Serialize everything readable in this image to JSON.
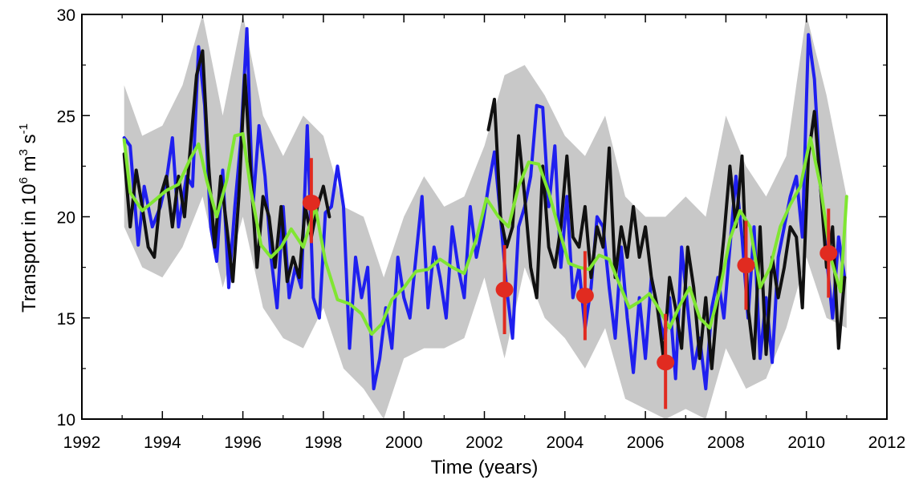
{
  "chart_data": {
    "type": "line",
    "title": "",
    "xlabel": "Time (years)",
    "ylabel": {
      "prefix": "Transport in 10",
      "exp1": "6",
      "mid": " m",
      "exp2": "3",
      "mid2": " s",
      "exp3": "-1"
    },
    "xlim": [
      1992,
      2012
    ],
    "ylim": [
      10,
      30
    ],
    "xticks": [
      "1992",
      "1994",
      "1996",
      "1998",
      "2000",
      "2002",
      "2004",
      "2006",
      "2008",
      "2010",
      "2012"
    ],
    "yticks": [
      "10",
      "15",
      "20",
      "25",
      "30"
    ],
    "grid": false,
    "legend": "none",
    "colors": {
      "uncertainty": "#c8c8c8",
      "blue_series": "#1f1fef",
      "black_series": "#111111",
      "green_series": "#80e632",
      "points": "#e12b20"
    },
    "series": [
      {
        "id": "blue",
        "x": [
          1993.05,
          1993.2,
          1993.4,
          1993.55,
          1993.75,
          1993.95,
          1994.1,
          1994.25,
          1994.4,
          1994.6,
          1994.75,
          1994.9,
          1995.05,
          1995.2,
          1995.35,
          1995.5,
          1995.65,
          1995.8,
          1995.95,
          1996.1,
          1996.25,
          1996.4,
          1996.55,
          1996.7,
          1996.85,
          1997.0,
          1997.15,
          1997.3,
          1997.45,
          1997.6,
          1997.75,
          1997.9,
          1998.05,
          1998.2,
          1998.35,
          1998.5,
          1998.65,
          1998.8,
          1998.95,
          1999.1,
          1999.25,
          1999.4,
          1999.55,
          1999.7,
          1999.85,
          2000.0,
          2000.15,
          2000.3,
          2000.45,
          2000.6,
          2000.75,
          2000.9,
          2001.05,
          2001.2,
          2001.35,
          2001.5,
          2001.65,
          2001.8,
          2001.95,
          2002.1,
          2002.25,
          2002.4,
          2002.55,
          2002.7,
          2002.85,
          2003.0,
          2003.15,
          2003.3,
          2003.45,
          2003.6,
          2003.75,
          2003.9,
          2004.05,
          2004.2,
          2004.35,
          2004.5,
          2004.65,
          2004.8,
          2004.95,
          2005.1,
          2005.25,
          2005.4,
          2005.55,
          2005.7,
          2005.85,
          2006.0,
          2006.15,
          2006.3,
          2006.45,
          2006.6,
          2006.75,
          2006.9,
          2007.05,
          2007.2,
          2007.35,
          2007.5,
          2007.65,
          2007.8,
          2007.95,
          2008.1,
          2008.25,
          2008.4,
          2008.55,
          2008.7,
          2008.85,
          2009.0,
          2009.15,
          2009.3,
          2009.45,
          2009.6,
          2009.75,
          2009.9,
          2010.05,
          2010.2,
          2010.35,
          2010.5,
          2010.65,
          2010.8,
          2010.95
        ],
        "y": [
          23.9,
          23.5,
          18.6,
          21.5,
          19.5,
          20.5,
          21.8,
          23.9,
          19.5,
          22.0,
          21.5,
          28.4,
          25.5,
          19.5,
          17.8,
          22.3,
          16.5,
          20.5,
          23.8,
          29.3,
          20.5,
          24.5,
          22.0,
          18.0,
          15.5,
          20.5,
          16.0,
          17.5,
          16.5,
          24.5,
          16.0,
          15.0,
          20.2,
          20.5,
          22.5,
          20.5,
          13.5,
          18.0,
          16.0,
          17.5,
          11.5,
          13.0,
          15.5,
          13.5,
          18.0,
          16.0,
          15.0,
          18.0,
          21.0,
          15.5,
          18.5,
          17.0,
          15.0,
          19.5,
          17.5,
          16.0,
          20.5,
          18.0,
          19.5,
          21.5,
          23.2,
          20.0,
          16.5,
          14.0,
          19.5,
          20.5,
          22.0,
          25.5,
          25.4,
          20.5,
          23.5,
          17.5,
          21.0,
          16.0,
          17.5,
          14.5,
          16.5,
          20.0,
          19.5,
          16.5,
          14.0,
          18.5,
          15.0,
          12.3,
          16.0,
          13.0,
          17.0,
          15.5,
          14.0,
          16.0,
          12.0,
          18.5,
          15.5,
          12.5,
          14.0,
          11.5,
          15.5,
          17.0,
          15.0,
          18.5,
          22.0,
          19.0,
          15.0,
          19.5,
          13.0,
          16.0,
          12.8,
          18.0,
          19.5,
          21.0,
          22.0,
          19.0,
          29.0,
          26.8,
          21.5,
          18.0,
          15.0,
          19.0,
          17.0
        ]
      },
      {
        "id": "black",
        "x": [
          1993.05,
          1993.2,
          1993.35,
          1993.5,
          1993.65,
          1993.8,
          1993.95,
          1994.1,
          1994.25,
          1994.4,
          1994.55,
          1994.7,
          1994.85,
          1995.0,
          1995.15,
          1995.3,
          1995.45,
          1995.6,
          1995.75,
          1995.9,
          1996.05,
          1996.2,
          1996.35,
          1996.5,
          1996.65,
          1996.8,
          1996.95,
          1997.1,
          1997.25,
          1997.4,
          1997.55,
          1997.7,
          1997.85,
          1998.0,
          1998.15,
          null,
          2002.1,
          2002.25,
          2002.4,
          2002.55,
          2002.7,
          2002.85,
          2003.0,
          2003.15,
          2003.3,
          2003.45,
          2003.6,
          2003.75,
          2003.9,
          2004.05,
          2004.2,
          2004.35,
          2004.5,
          2004.65,
          2004.8,
          2004.95,
          2005.1,
          2005.25,
          2005.4,
          2005.55,
          2005.7,
          2005.85,
          2006.0,
          2006.15,
          2006.3,
          2006.45,
          2006.6,
          2006.75,
          2006.9,
          2007.05,
          2007.2,
          2007.35,
          2007.5,
          2007.65,
          2007.8,
          2007.95,
          2008.1,
          2008.25,
          2008.4,
          2008.55,
          2008.7,
          2008.85,
          2009.0,
          2009.15,
          2009.3,
          2009.45,
          2009.6,
          2009.75,
          2009.9,
          2010.05,
          2010.2,
          2010.35,
          2010.5,
          2010.65,
          2010.8,
          2010.95
        ],
        "y": [
          23.1,
          19.5,
          22.3,
          20.5,
          18.5,
          18.0,
          21.0,
          22.0,
          19.5,
          22.0,
          20.0,
          23.5,
          27.0,
          28.2,
          22.5,
          18.5,
          22.0,
          19.5,
          16.8,
          21.0,
          27.0,
          22.0,
          17.5,
          21.0,
          20.0,
          17.5,
          20.5,
          16.8,
          18.0,
          17.0,
          20.5,
          19.0,
          20.5,
          21.5,
          20.0,
          null,
          24.3,
          25.8,
          20.0,
          18.5,
          19.5,
          24.0,
          21.0,
          17.5,
          16.0,
          22.5,
          18.5,
          17.5,
          19.5,
          23.0,
          19.0,
          18.5,
          20.5,
          17.0,
          19.5,
          18.5,
          23.4,
          17.0,
          19.5,
          18.0,
          20.5,
          18.0,
          19.5,
          17.0,
          15.5,
          13.0,
          17.0,
          15.5,
          13.5,
          18.5,
          16.5,
          13.0,
          16.0,
          12.5,
          16.0,
          19.0,
          22.5,
          19.5,
          23.0,
          15.5,
          13.0,
          19.5,
          13.2,
          18.0,
          16.0,
          17.5,
          19.5,
          19.0,
          15.5,
          23.0,
          25.2,
          21.5,
          17.5,
          19.5,
          13.5,
          17.0
        ]
      },
      {
        "id": "green",
        "x": [
          1993.05,
          1993.2,
          1993.5,
          1993.8,
          1994.1,
          1994.4,
          1994.7,
          1994.9,
          1995.1,
          1995.35,
          1995.6,
          1995.8,
          1996.0,
          1996.2,
          1996.45,
          1996.7,
          1996.95,
          1997.2,
          1997.5,
          1997.8,
          1998.05,
          1998.35,
          1998.65,
          1998.95,
          1999.2,
          1999.45,
          1999.7,
          2000.0,
          2000.3,
          2000.6,
          2000.9,
          2001.2,
          2001.5,
          2001.8,
          2002.05,
          2002.35,
          2002.6,
          2002.85,
          2003.1,
          2003.35,
          2003.6,
          2003.85,
          2004.1,
          2004.35,
          2004.6,
          2004.85,
          2005.1,
          2005.35,
          2005.6,
          2005.85,
          2006.1,
          2006.35,
          2006.6,
          2006.85,
          2007.1,
          2007.35,
          2007.6,
          2007.85,
          2008.1,
          2008.35,
          2008.6,
          2008.85,
          2009.1,
          2009.35,
          2009.6,
          2009.85,
          2010.1,
          2010.35,
          2010.6,
          2010.85,
          2011.0
        ],
        "y": [
          23.8,
          21.2,
          20.3,
          20.8,
          21.3,
          21.6,
          22.9,
          23.6,
          21.8,
          20.0,
          21.8,
          24.0,
          24.1,
          21.3,
          18.6,
          18.0,
          18.5,
          19.4,
          18.5,
          20.5,
          17.8,
          15.9,
          15.7,
          15.2,
          14.2,
          14.7,
          15.9,
          16.5,
          17.3,
          17.4,
          17.9,
          17.5,
          17.2,
          18.9,
          20.9,
          20.0,
          19.5,
          21.5,
          22.7,
          22.6,
          21.2,
          19.4,
          17.7,
          17.5,
          17.4,
          18.1,
          17.9,
          16.7,
          15.5,
          15.8,
          16.2,
          15.4,
          14.5,
          15.6,
          16.5,
          15.0,
          14.5,
          16.4,
          18.9,
          20.3,
          19.5,
          16.5,
          17.5,
          19.5,
          20.6,
          21.5,
          23.9,
          21.5,
          18.0,
          16.3,
          21.0
        ]
      }
    ],
    "uncertainty_band": {
      "x": [
        1993.05,
        1993.5,
        1994.0,
        1994.5,
        1995.0,
        1995.5,
        1996.0,
        1996.5,
        1997.0,
        1997.5,
        1998.0,
        1998.5,
        1999.0,
        1999.5,
        2000.0,
        2000.5,
        2001.0,
        2001.5,
        2002.0,
        2002.5,
        2003.0,
        2003.5,
        2004.0,
        2004.5,
        2005.0,
        2005.5,
        2006.0,
        2006.5,
        2007.0,
        2007.5,
        2008.0,
        2008.5,
        2009.0,
        2009.5,
        2010.0,
        2010.5,
        2011.0
      ],
      "upper": [
        26.5,
        24.0,
        24.5,
        26.5,
        30.0,
        25.0,
        30.0,
        25.0,
        23.0,
        25.0,
        24.0,
        20.5,
        20.0,
        17.0,
        20.0,
        22.0,
        20.5,
        21.0,
        23.5,
        27.0,
        27.5,
        26.0,
        24.0,
        23.0,
        25.0,
        21.0,
        20.0,
        20.0,
        21.0,
        20.0,
        25.0,
        22.5,
        21.0,
        23.0,
        30.0,
        26.0,
        21.0
      ],
      "lower": [
        19.5,
        17.5,
        17.0,
        18.5,
        21.0,
        16.5,
        20.0,
        15.5,
        14.0,
        13.5,
        15.5,
        12.5,
        11.5,
        10.0,
        13.0,
        13.5,
        13.5,
        14.0,
        17.0,
        13.0,
        17.5,
        15.0,
        14.0,
        12.5,
        14.5,
        11.0,
        10.5,
        10.0,
        10.5,
        10.0,
        13.5,
        11.5,
        12.0,
        14.5,
        18.0,
        15.0,
        14.5
      ]
    },
    "points": {
      "x": [
        1997.7,
        2002.5,
        2004.5,
        2006.5,
        2008.5,
        2010.55
      ],
      "y": [
        20.7,
        16.4,
        16.1,
        12.8,
        17.6,
        18.2
      ],
      "err_low": [
        18.7,
        14.2,
        13.9,
        10.5,
        15.4,
        16.0
      ],
      "err_high": [
        22.9,
        18.6,
        18.3,
        15.2,
        19.8,
        20.4
      ]
    }
  }
}
